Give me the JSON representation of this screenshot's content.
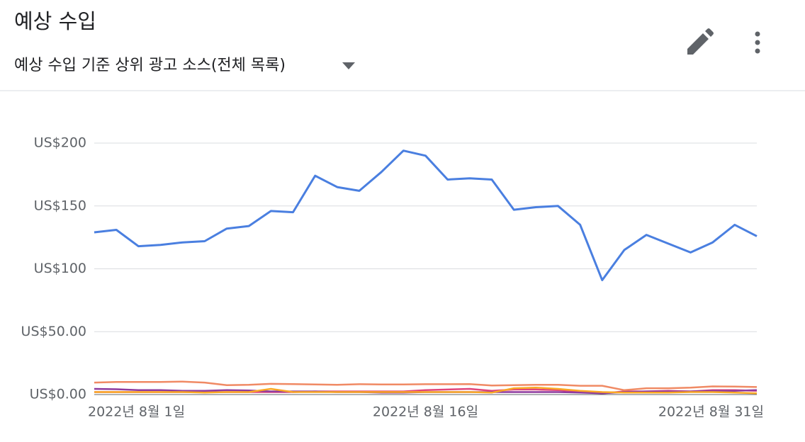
{
  "header": {
    "title": "예상 수입",
    "subtitle": "예상 수입 기준 상위 광고 소스(전체 목록)"
  },
  "chart_data": {
    "type": "line",
    "categories": [
      "2022년 8월 1일",
      null,
      null,
      null,
      null,
      null,
      null,
      null,
      null,
      null,
      null,
      null,
      null,
      null,
      null,
      "2022년 8월 16일",
      null,
      null,
      null,
      null,
      null,
      null,
      null,
      null,
      null,
      null,
      null,
      null,
      null,
      null,
      "2022년 8월 31일"
    ],
    "series": [
      {
        "color": "#4a7fe0",
        "values": [
          129,
          131,
          118,
          119,
          121,
          122,
          132,
          134,
          146,
          145,
          174,
          165,
          162,
          177,
          194,
          190,
          171,
          172,
          171,
          147,
          149,
          150,
          135,
          91,
          115,
          127,
          120,
          113,
          121,
          135,
          126
        ]
      },
      {
        "color": "#f08a64",
        "values": [
          9.5,
          10,
          10,
          10,
          10.3,
          9.5,
          7.5,
          7.8,
          8.5,
          8.3,
          8,
          7.7,
          8.2,
          8,
          8,
          8.2,
          8.2,
          8.3,
          7.2,
          7.5,
          7.8,
          7.8,
          7,
          7,
          3.5,
          5,
          5,
          5.5,
          6.5,
          6.3,
          6
        ]
      },
      {
        "color": "#f9a825",
        "values": [
          2,
          2,
          2,
          2,
          2,
          1.5,
          2,
          2,
          4.5,
          2,
          2,
          2,
          2,
          2,
          2,
          2,
          2,
          2,
          1.5,
          5,
          5.5,
          4.5,
          3,
          2,
          1.5,
          1.5,
          1.5,
          2,
          2,
          1.5,
          1
        ]
      },
      {
        "color": "#8e3a9e",
        "values": [
          4.5,
          4.2,
          3.5,
          3.5,
          3,
          3,
          3.5,
          3.2,
          2.5,
          2.5,
          2.5,
          2,
          2,
          1.5,
          1.5,
          2,
          2,
          2,
          2,
          2,
          2,
          2,
          1.5,
          1,
          2,
          2.5,
          2.5,
          2.5,
          3,
          3,
          3.5
        ]
      },
      {
        "color": "#e0457b",
        "values": [
          2,
          2,
          2,
          2,
          2,
          2,
          2,
          2,
          2,
          2,
          2.5,
          2.5,
          2.5,
          2.5,
          2.5,
          3.5,
          4,
          4.5,
          3,
          4,
          4,
          3.5,
          2.5,
          1,
          2.5,
          2.5,
          3,
          2.5,
          3.5,
          3.5,
          3
        ]
      }
    ],
    "ylim": [
      0,
      200
    ],
    "yticks": [
      {
        "value": 0,
        "label": "US$0.00"
      },
      {
        "value": 50,
        "label": "US$50.00"
      },
      {
        "value": 100,
        "label": "US$100"
      },
      {
        "value": 150,
        "label": "US$150"
      },
      {
        "value": 200,
        "label": "US$200"
      }
    ],
    "grid": true
  }
}
